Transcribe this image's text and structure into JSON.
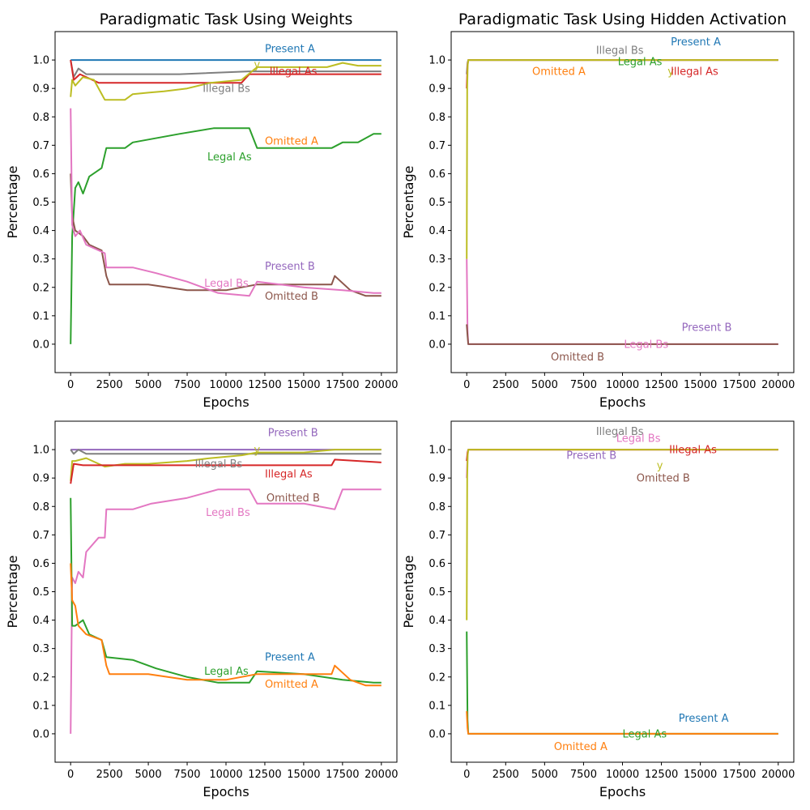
{
  "colors": {
    "Present A": "#1f77b4",
    "Omitted A": "#ff7f0e",
    "Legal As": "#2ca02c",
    "Illegal As": "#d62728",
    "Present B": "#9467bd",
    "Omitted B": "#8c564b",
    "Legal Bs": "#e377c2",
    "Illegal Bs": "#7f7f7f",
    "y": "#bcbd22"
  },
  "chart_data": [
    {
      "type": "line",
      "title": "Paradigmatic Task Using Weights",
      "xlabel": "Epochs",
      "ylabel": "Percentage",
      "xlim": [
        -1000,
        21000
      ],
      "ylim": [
        -0.1,
        1.1
      ],
      "xticks": [
        0,
        2500,
        5000,
        7500,
        10000,
        12500,
        15000,
        17500,
        20000
      ],
      "yticks": [
        0.0,
        0.1,
        0.2,
        0.3,
        0.4,
        0.5,
        0.6,
        0.7,
        0.8,
        0.9,
        1.0
      ],
      "grid": false,
      "series": [
        {
          "name": "Present A",
          "x": [
            0,
            20000
          ],
          "y": [
            1.0,
            1.0
          ]
        },
        {
          "name": "Illegal Bs",
          "x": [
            0,
            200,
            500,
            1000,
            4000,
            7000,
            11500,
            11700,
            15000,
            16800,
            17000,
            20000
          ],
          "y": [
            1.0,
            0.94,
            0.97,
            0.95,
            0.95,
            0.95,
            0.96,
            0.96,
            0.96,
            0.96,
            0.96,
            0.96
          ]
        },
        {
          "name": "Illegal As",
          "x": [
            0,
            200,
            600,
            1800,
            3000,
            5000,
            8000,
            11000,
            11500,
            15000,
            17000,
            20000
          ],
          "y": [
            1.0,
            0.93,
            0.95,
            0.92,
            0.92,
            0.92,
            0.92,
            0.92,
            0.95,
            0.95,
            0.95,
            0.95
          ]
        },
        {
          "name": "y",
          "x": [
            0,
            100,
            300,
            800,
            1500,
            2200,
            3500,
            4000,
            5000,
            6000,
            7500,
            9000,
            11000,
            12000,
            14000,
            16500,
            17500,
            18500,
            20000
          ],
          "y": [
            0.87,
            0.93,
            0.91,
            0.94,
            0.93,
            0.86,
            0.86,
            0.88,
            0.885,
            0.89,
            0.9,
            0.92,
            0.93,
            0.975,
            0.975,
            0.975,
            0.99,
            0.98,
            0.98
          ]
        },
        {
          "name": "Legal As",
          "x": [
            0,
            100,
            300,
            500,
            800,
            1200,
            2000,
            2300,
            3500,
            4000,
            7000,
            9200,
            11500,
            12000,
            16800,
            17500,
            18500,
            19500,
            20000
          ],
          "y": [
            0.0,
            0.38,
            0.55,
            0.57,
            0.53,
            0.59,
            0.62,
            0.69,
            0.69,
            0.71,
            0.74,
            0.76,
            0.76,
            0.69,
            0.69,
            0.71,
            0.71,
            0.74,
            0.74
          ]
        },
        {
          "name": "Omitted B",
          "x": [
            0,
            100,
            300,
            800,
            1200,
            2000,
            2300,
            2500,
            5000,
            7500,
            10000,
            12000,
            15000,
            16800,
            17000,
            18000,
            19000,
            20000
          ],
          "y": [
            0.6,
            0.45,
            0.4,
            0.38,
            0.35,
            0.33,
            0.24,
            0.21,
            0.21,
            0.19,
            0.19,
            0.21,
            0.21,
            0.21,
            0.24,
            0.19,
            0.17,
            0.17
          ]
        },
        {
          "name": "Legal Bs",
          "x": [
            0,
            100,
            300,
            600,
            1000,
            2200,
            2300,
            4000,
            5500,
            7500,
            9500,
            11500,
            12000,
            15000,
            17500,
            19500,
            20000
          ],
          "y": [
            0.83,
            0.42,
            0.38,
            0.4,
            0.35,
            0.32,
            0.27,
            0.27,
            0.25,
            0.22,
            0.18,
            0.17,
            0.22,
            0.2,
            0.19,
            0.18,
            0.18
          ]
        }
      ],
      "annotations": [
        {
          "text": "Present A",
          "x": 12500,
          "y": 1.04,
          "series": "Present A"
        },
        {
          "text": "y",
          "x": 11800,
          "y": 0.985,
          "series": "y"
        },
        {
          "text": "Illegal As",
          "x": 12800,
          "y": 0.96,
          "series": "Illegal As"
        },
        {
          "text": "Illegal Bs",
          "x": 8500,
          "y": 0.9,
          "series": "Illegal Bs"
        },
        {
          "text": "Omitted A",
          "x": 12500,
          "y": 0.715,
          "series": "Omitted A"
        },
        {
          "text": "Legal As",
          "x": 8800,
          "y": 0.66,
          "series": "Legal As"
        },
        {
          "text": "Present B",
          "x": 12500,
          "y": 0.275,
          "series": "Present B"
        },
        {
          "text": "Legal Bs",
          "x": 8600,
          "y": 0.215,
          "series": "Legal Bs"
        },
        {
          "text": "Omitted B",
          "x": 12500,
          "y": 0.17,
          "series": "Omitted B"
        }
      ]
    },
    {
      "type": "line",
      "title": "Paradigmatic Task Using Hidden Activation",
      "xlabel": "Epochs",
      "ylabel": "Percentage",
      "xlim": [
        -1000,
        21000
      ],
      "ylim": [
        -0.1,
        1.1
      ],
      "xticks": [
        0,
        2500,
        5000,
        7500,
        10000,
        12500,
        15000,
        17500,
        20000
      ],
      "yticks": [
        0.0,
        0.1,
        0.2,
        0.3,
        0.4,
        0.5,
        0.6,
        0.7,
        0.8,
        0.9,
        1.0
      ],
      "grid": false,
      "series": [
        {
          "name": "Legal Bs",
          "x": [
            0,
            50,
            100,
            20000
          ],
          "y": [
            0.3,
            0.05,
            0.0,
            0.0
          ]
        },
        {
          "name": "Omitted B",
          "x": [
            0,
            50,
            100,
            20000
          ],
          "y": [
            0.07,
            0.03,
            0.0,
            0.0
          ]
        },
        {
          "name": "Illegal Bs",
          "x": [
            0,
            50,
            100,
            20000
          ],
          "y": [
            0.95,
            0.99,
            1.0,
            1.0
          ]
        },
        {
          "name": "Illegal As",
          "x": [
            0,
            50,
            100,
            20000
          ],
          "y": [
            0.9,
            0.98,
            1.0,
            1.0
          ]
        },
        {
          "name": "y",
          "x": [
            0,
            30,
            60,
            100,
            20000
          ],
          "y": [
            0.3,
            0.9,
            0.98,
            1.0,
            1.0
          ]
        }
      ],
      "annotations": [
        {
          "text": "Present A",
          "x": 13100,
          "y": 1.065,
          "series": "Present A"
        },
        {
          "text": "Illegal Bs",
          "x": 8300,
          "y": 1.035,
          "series": "Illegal Bs"
        },
        {
          "text": "Legal As",
          "x": 9700,
          "y": 0.995,
          "series": "Legal As"
        },
        {
          "text": "Omitted A",
          "x": 4200,
          "y": 0.96,
          "series": "Omitted A"
        },
        {
          "text": "y",
          "x": 12900,
          "y": 0.96,
          "series": "y"
        },
        {
          "text": "Illegal As",
          "x": 13100,
          "y": 0.96,
          "series": "Illegal As"
        },
        {
          "text": "Present B",
          "x": 13800,
          "y": 0.06,
          "series": "Present B"
        },
        {
          "text": "Legal Bs",
          "x": 10100,
          "y": 0.0,
          "series": "Legal Bs"
        },
        {
          "text": "Omitted B",
          "x": 5400,
          "y": -0.045,
          "series": "Omitted B"
        }
      ]
    },
    {
      "type": "line",
      "title": "",
      "xlabel": "Epochs",
      "ylabel": "Percentage",
      "xlim": [
        -1000,
        21000
      ],
      "ylim": [
        -0.1,
        1.1
      ],
      "xticks": [
        0,
        2500,
        5000,
        7500,
        10000,
        12500,
        15000,
        17500,
        20000
      ],
      "yticks": [
        0.0,
        0.1,
        0.2,
        0.3,
        0.4,
        0.5,
        0.6,
        0.7,
        0.8,
        0.9,
        1.0
      ],
      "grid": false,
      "series": [
        {
          "name": "Present B",
          "x": [
            0,
            20000
          ],
          "y": [
            1.0,
            1.0
          ]
        },
        {
          "name": "Illegal Bs",
          "x": [
            0,
            200,
            500,
            1000,
            2500,
            5000,
            8000,
            11500,
            12000,
            15000,
            20000
          ],
          "y": [
            1.0,
            0.985,
            1.0,
            0.985,
            0.985,
            0.985,
            0.985,
            0.985,
            0.985,
            0.985,
            0.985
          ]
        },
        {
          "name": "y",
          "x": [
            0,
            100,
            300,
            1000,
            2200,
            3500,
            5000,
            7500,
            9000,
            11000,
            12000,
            15000,
            17000,
            20000
          ],
          "y": [
            0.89,
            0.96,
            0.96,
            0.97,
            0.94,
            0.95,
            0.95,
            0.96,
            0.97,
            0.98,
            0.99,
            0.99,
            1.0,
            1.0
          ]
        },
        {
          "name": "Illegal As",
          "x": [
            0,
            200,
            800,
            1500,
            5000,
            10000,
            15000,
            16800,
            17000,
            20000
          ],
          "y": [
            0.88,
            0.95,
            0.945,
            0.945,
            0.945,
            0.945,
            0.945,
            0.945,
            0.965,
            0.955
          ]
        },
        {
          "name": "Legal Bs",
          "x": [
            0,
            100,
            300,
            500,
            800,
            1000,
            1800,
            2200,
            2300,
            3500,
            4000,
            5200,
            7500,
            9500,
            11500,
            12000,
            15000,
            17000,
            17500,
            20000
          ],
          "y": [
            0.0,
            0.55,
            0.53,
            0.57,
            0.55,
            0.64,
            0.69,
            0.69,
            0.79,
            0.79,
            0.79,
            0.81,
            0.83,
            0.86,
            0.86,
            0.81,
            0.81,
            0.79,
            0.86,
            0.86
          ]
        },
        {
          "name": "Legal As",
          "x": [
            0,
            100,
            300,
            800,
            1200,
            2000,
            2300,
            4000,
            5500,
            7500,
            9500,
            11500,
            12000,
            15000,
            17500,
            19500,
            20000
          ],
          "y": [
            0.83,
            0.38,
            0.38,
            0.4,
            0.35,
            0.33,
            0.27,
            0.26,
            0.23,
            0.2,
            0.18,
            0.18,
            0.22,
            0.21,
            0.19,
            0.18,
            0.18
          ]
        },
        {
          "name": "Omitted A",
          "x": [
            0,
            100,
            300,
            500,
            1000,
            2000,
            2300,
            2500,
            5000,
            7500,
            10000,
            12000,
            15000,
            16800,
            17000,
            18000,
            19000,
            20000
          ],
          "y": [
            0.6,
            0.47,
            0.45,
            0.38,
            0.35,
            0.33,
            0.24,
            0.21,
            0.21,
            0.19,
            0.19,
            0.21,
            0.21,
            0.21,
            0.24,
            0.19,
            0.17,
            0.17
          ]
        }
      ],
      "annotations": [
        {
          "text": "Present B",
          "x": 12700,
          "y": 1.06,
          "series": "Present B"
        },
        {
          "text": "y",
          "x": 11800,
          "y": 1.0,
          "series": "y"
        },
        {
          "text": "Illegal Bs",
          "x": 8000,
          "y": 0.95,
          "series": "Illegal Bs"
        },
        {
          "text": "Illegal As",
          "x": 12500,
          "y": 0.915,
          "series": "Illegal As"
        },
        {
          "text": "Omitted B",
          "x": 12600,
          "y": 0.83,
          "series": "Omitted B"
        },
        {
          "text": "Legal Bs",
          "x": 8700,
          "y": 0.78,
          "series": "Legal Bs"
        },
        {
          "text": "Present A",
          "x": 12500,
          "y": 0.27,
          "series": "Present A"
        },
        {
          "text": "Legal As",
          "x": 8600,
          "y": 0.22,
          "series": "Legal As"
        },
        {
          "text": "Omitted A",
          "x": 12500,
          "y": 0.175,
          "series": "Omitted A"
        }
      ]
    },
    {
      "type": "line",
      "title": "",
      "xlabel": "Epochs",
      "ylabel": "Percentage",
      "xlim": [
        -1000,
        21000
      ],
      "ylim": [
        -0.1,
        1.1
      ],
      "xticks": [
        0,
        2500,
        5000,
        7500,
        10000,
        12500,
        15000,
        17500,
        20000
      ],
      "yticks": [
        0.0,
        0.1,
        0.2,
        0.3,
        0.4,
        0.5,
        0.6,
        0.7,
        0.8,
        0.9,
        1.0
      ],
      "grid": false,
      "series": [
        {
          "name": "Legal As",
          "x": [
            0,
            50,
            100,
            20000
          ],
          "y": [
            0.36,
            0.05,
            0.0,
            0.0
          ]
        },
        {
          "name": "Omitted A",
          "x": [
            0,
            50,
            100,
            20000
          ],
          "y": [
            0.08,
            0.02,
            0.0,
            0.0
          ]
        },
        {
          "name": "Legal Bs",
          "x": [
            0,
            50,
            100,
            20000
          ],
          "y": [
            0.9,
            0.98,
            1.0,
            1.0
          ]
        },
        {
          "name": "Illegal As",
          "x": [
            0,
            50,
            100,
            20000
          ],
          "y": [
            0.96,
            0.99,
            1.0,
            1.0
          ]
        },
        {
          "name": "y",
          "x": [
            0,
            30,
            60,
            100,
            20000
          ],
          "y": [
            0.4,
            0.9,
            0.98,
            1.0,
            1.0
          ]
        }
      ],
      "annotations": [
        {
          "text": "Illegal Bs",
          "x": 8300,
          "y": 1.065,
          "series": "Illegal Bs"
        },
        {
          "text": "Legal Bs",
          "x": 9600,
          "y": 1.04,
          "series": "Legal Bs"
        },
        {
          "text": "Illegal As",
          "x": 13000,
          "y": 1.0,
          "series": "Illegal As"
        },
        {
          "text": "Present B",
          "x": 6400,
          "y": 0.98,
          "series": "Present B"
        },
        {
          "text": "y",
          "x": 12200,
          "y": 0.945,
          "series": "y"
        },
        {
          "text": "Omitted B",
          "x": 10900,
          "y": 0.9,
          "series": "Omitted B"
        },
        {
          "text": "Present A",
          "x": 13600,
          "y": 0.055,
          "series": "Present A"
        },
        {
          "text": "Legal As",
          "x": 10000,
          "y": 0.0,
          "series": "Legal As"
        },
        {
          "text": "Omitted A",
          "x": 5600,
          "y": -0.045,
          "series": "Omitted A"
        }
      ]
    }
  ]
}
